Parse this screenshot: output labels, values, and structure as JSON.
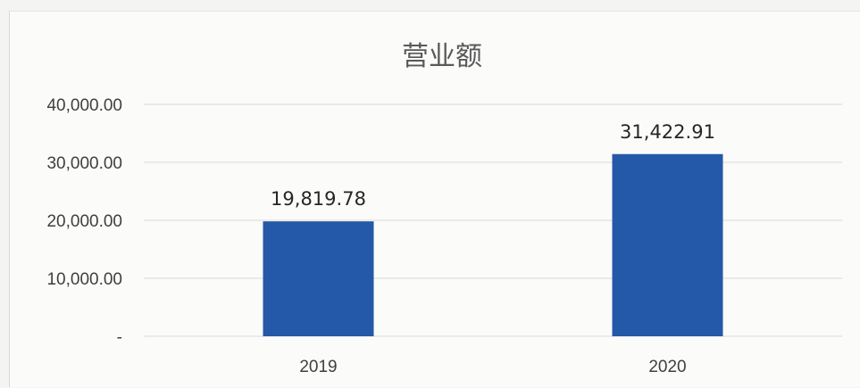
{
  "chart_data": {
    "type": "bar",
    "title": "营业额",
    "categories": [
      "2019",
      "2020"
    ],
    "values": [
      19819.78,
      31422.91
    ],
    "data_labels": [
      "19,819.78",
      "31,422.91"
    ],
    "y_ticks": [
      0,
      10000,
      20000,
      30000,
      40000
    ],
    "y_tick_labels": [
      "-",
      "10,000.00",
      "20,000.00",
      "30,000.00",
      "40,000.00"
    ],
    "xlabel": "",
    "ylabel": "",
    "ylim": [
      0,
      40000
    ],
    "grid": true,
    "legend": "none",
    "bar_color": "#2458a8"
  }
}
